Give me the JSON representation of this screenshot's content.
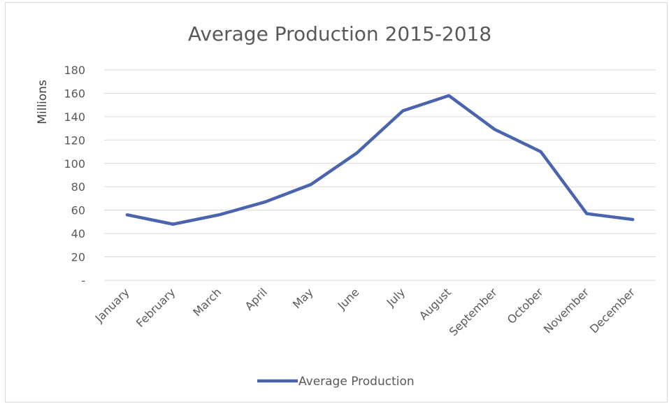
{
  "chart_data": {
    "type": "line",
    "title": "Average Production 2015-2018",
    "ylabel": "Millions",
    "xlabel": "",
    "categories": [
      "January",
      "February",
      "March",
      "April",
      "May",
      "June",
      "July",
      "August",
      "September",
      "October",
      "November",
      "December"
    ],
    "series": [
      {
        "name": "Average Production",
        "color": "#4a64ad",
        "values": [
          56,
          48,
          56,
          67,
          82,
          109,
          145,
          158,
          129,
          110,
          57,
          52
        ]
      }
    ],
    "ylim": [
      0,
      180
    ],
    "yticks": [
      0,
      20,
      40,
      60,
      80,
      100,
      120,
      140,
      160,
      180
    ],
    "ytick_labels": [
      "-",
      "20",
      "40",
      "60",
      "80",
      "100",
      "120",
      "140",
      "160",
      "180"
    ],
    "grid": true,
    "legend": "bottom"
  }
}
